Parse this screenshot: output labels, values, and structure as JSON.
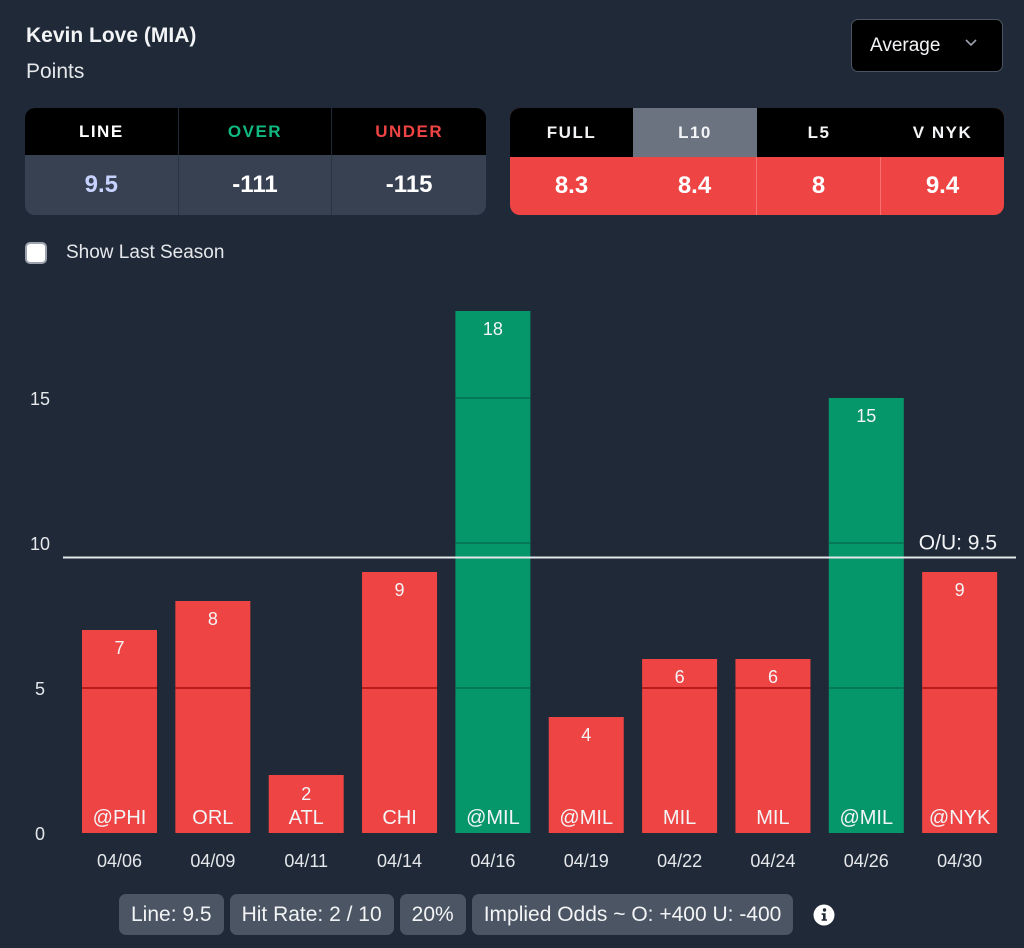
{
  "header": {
    "player": "Kevin Love (MIA)",
    "stat": "Points"
  },
  "dropdown": {
    "selected": "Average",
    "icon": "chevron-down-icon"
  },
  "odds": {
    "headers": [
      "LINE",
      "OVER",
      "UNDER"
    ],
    "values": [
      "9.5",
      "-111",
      "-115"
    ],
    "colors": {
      "line_header": "#ffffff",
      "over_header": "#10b981",
      "under_header": "#ef4444",
      "line_value": "#c7d2fe",
      "value": "#ffffff"
    }
  },
  "averages": {
    "tabs": [
      {
        "label": "FULL",
        "value": "8.3",
        "active": false
      },
      {
        "label": "L10",
        "value": "8.4",
        "active": true
      },
      {
        "label": "L5",
        "value": "8",
        "active": false
      },
      {
        "label": "V NYK",
        "value": "9.4",
        "active": false
      }
    ]
  },
  "options": {
    "show_last_season_label": "Show Last Season",
    "show_last_season_checked": false
  },
  "chart_data": {
    "type": "bar",
    "categories": [
      "04/06",
      "04/09",
      "04/11",
      "04/14",
      "04/16",
      "04/19",
      "04/22",
      "04/24",
      "04/26",
      "04/30"
    ],
    "opponents": [
      "@PHI",
      "ORL",
      "ATL",
      "CHI",
      "@MIL",
      "@MIL",
      "MIL",
      "MIL",
      "@MIL",
      "@NYK"
    ],
    "values": [
      7,
      8,
      2,
      9,
      18,
      4,
      6,
      6,
      15,
      9
    ],
    "yticks": [
      0,
      5,
      10,
      15
    ],
    "ylim": [
      0,
      18
    ],
    "reference_line": {
      "value": 9.5,
      "label": "O/U: 9.5"
    },
    "colors": {
      "over": "#059669",
      "under": "#ef4444",
      "gridline_over": "#047857",
      "gridline_under": "#b91c1c",
      "axis_text": "#e5e7eb",
      "reference": "#e5e7eb"
    },
    "title": "",
    "xlabel": "",
    "ylabel": ""
  },
  "footer": {
    "line": "Line: 9.5",
    "hit_rate": "Hit Rate: 2 / 10",
    "percent": "20%",
    "implied_odds": "Implied Odds ~ O: +400 U: -400",
    "icon": "info-icon"
  }
}
